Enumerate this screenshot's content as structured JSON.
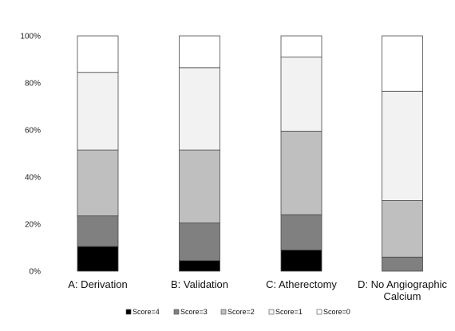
{
  "chart_data": {
    "type": "bar",
    "stacked": true,
    "title": "",
    "xlabel": "",
    "ylabel": "",
    "ylim": [
      0,
      100
    ],
    "yticks": [
      "0%",
      "20%",
      "40%",
      "60%",
      "80%",
      "100%"
    ],
    "categories": [
      [
        "A: Derivation"
      ],
      [
        "B: Validation"
      ],
      [
        "C: Atherectomy"
      ],
      [
        "D: No Angiographic",
        "Calcium"
      ]
    ],
    "series": [
      {
        "name": "Score=4",
        "color": "#000000",
        "values": [
          10.5,
          4.5,
          9,
          0
        ]
      },
      {
        "name": "Score=3",
        "color": "#808080",
        "values": [
          13,
          16,
          15,
          6
        ]
      },
      {
        "name": "Score=2",
        "color": "#bfbfbf",
        "values": [
          28,
          31,
          35.5,
          24
        ]
      },
      {
        "name": "Score=1",
        "color": "#f2f2f2",
        "values": [
          33,
          35,
          31.5,
          46.5
        ]
      },
      {
        "name": "Score=0",
        "color": "#ffffff",
        "values": [
          15.5,
          13.5,
          9,
          23.5
        ]
      }
    ],
    "legend_position": "bottom",
    "grid": false
  }
}
